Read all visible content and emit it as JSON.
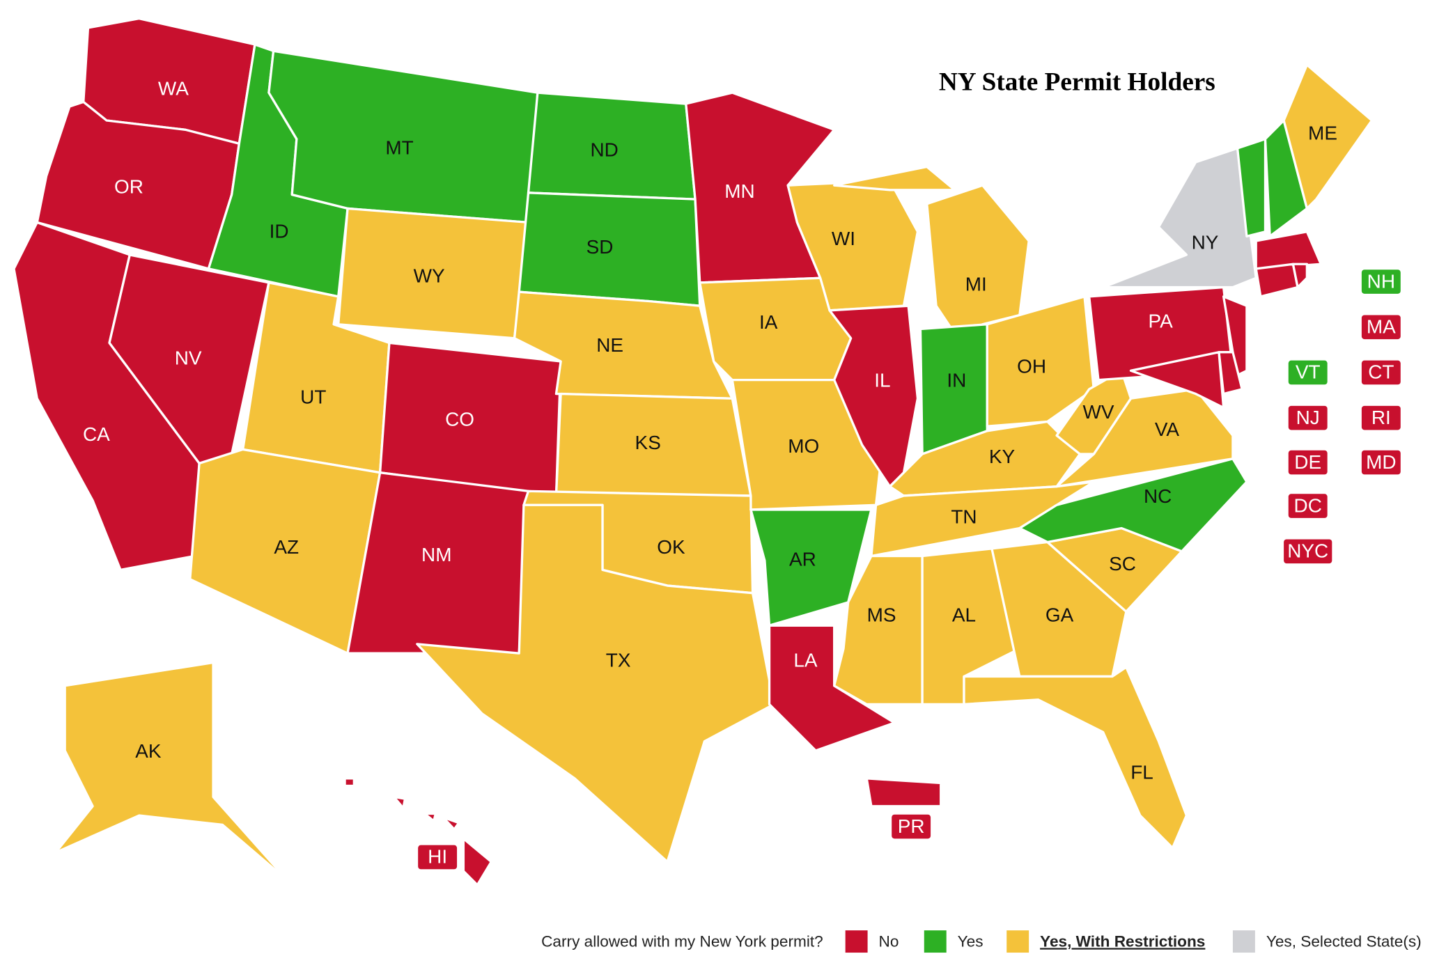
{
  "title": "NY State Permit Holders",
  "legend": {
    "question": "Carry allowed with my New York permit?",
    "items": [
      {
        "label": "No",
        "color": "#c8102e"
      },
      {
        "label": "Yes",
        "color": "#2db024"
      },
      {
        "label": "Yes, With Restrictions",
        "color": "#f4c23a"
      },
      {
        "label": "Yes, Selected State(s)",
        "color": "#cfd0d4"
      }
    ]
  },
  "states": [
    {
      "abbr": "WA",
      "status": 0
    },
    {
      "abbr": "OR",
      "status": 0
    },
    {
      "abbr": "CA",
      "status": 0
    },
    {
      "abbr": "NV",
      "status": 0
    },
    {
      "abbr": "ID",
      "status": 1
    },
    {
      "abbr": "MT",
      "status": 1
    },
    {
      "abbr": "WY",
      "status": 2
    },
    {
      "abbr": "UT",
      "status": 2
    },
    {
      "abbr": "CO",
      "status": 0
    },
    {
      "abbr": "AZ",
      "status": 2
    },
    {
      "abbr": "NM",
      "status": 0
    },
    {
      "abbr": "ND",
      "status": 1
    },
    {
      "abbr": "SD",
      "status": 1
    },
    {
      "abbr": "NE",
      "status": 2
    },
    {
      "abbr": "KS",
      "status": 2
    },
    {
      "abbr": "OK",
      "status": 2
    },
    {
      "abbr": "TX",
      "status": 2
    },
    {
      "abbr": "MN",
      "status": 0
    },
    {
      "abbr": "IA",
      "status": 2
    },
    {
      "abbr": "MO",
      "status": 2
    },
    {
      "abbr": "AR",
      "status": 1
    },
    {
      "abbr": "LA",
      "status": 0
    },
    {
      "abbr": "WI",
      "status": 2
    },
    {
      "abbr": "MI",
      "status": 2
    },
    {
      "abbr": "IL",
      "status": 0
    },
    {
      "abbr": "IN",
      "status": 1
    },
    {
      "abbr": "OH",
      "status": 2
    },
    {
      "abbr": "KY",
      "status": 2
    },
    {
      "abbr": "TN",
      "status": 2
    },
    {
      "abbr": "MS",
      "status": 2
    },
    {
      "abbr": "AL",
      "status": 2
    },
    {
      "abbr": "GA",
      "status": 2
    },
    {
      "abbr": "FL",
      "status": 2
    },
    {
      "abbr": "SC",
      "status": 2
    },
    {
      "abbr": "NC",
      "status": 1
    },
    {
      "abbr": "VA",
      "status": 2
    },
    {
      "abbr": "WV",
      "status": 2
    },
    {
      "abbr": "PA",
      "status": 0
    },
    {
      "abbr": "NY",
      "status": 3
    },
    {
      "abbr": "VT",
      "status": 1
    },
    {
      "abbr": "NH",
      "status": 1
    },
    {
      "abbr": "ME",
      "status": 2
    },
    {
      "abbr": "MA",
      "status": 0
    },
    {
      "abbr": "CT",
      "status": 0
    },
    {
      "abbr": "RI",
      "status": 0
    },
    {
      "abbr": "NJ",
      "status": 0
    },
    {
      "abbr": "DE",
      "status": 0
    },
    {
      "abbr": "MD",
      "status": 0
    },
    {
      "abbr": "AK",
      "status": 2
    },
    {
      "abbr": "HI",
      "status": 0
    },
    {
      "abbr": "PR",
      "status": 0
    },
    {
      "abbr": "DC",
      "status": 0
    },
    {
      "abbr": "NYC",
      "status": 0
    }
  ]
}
